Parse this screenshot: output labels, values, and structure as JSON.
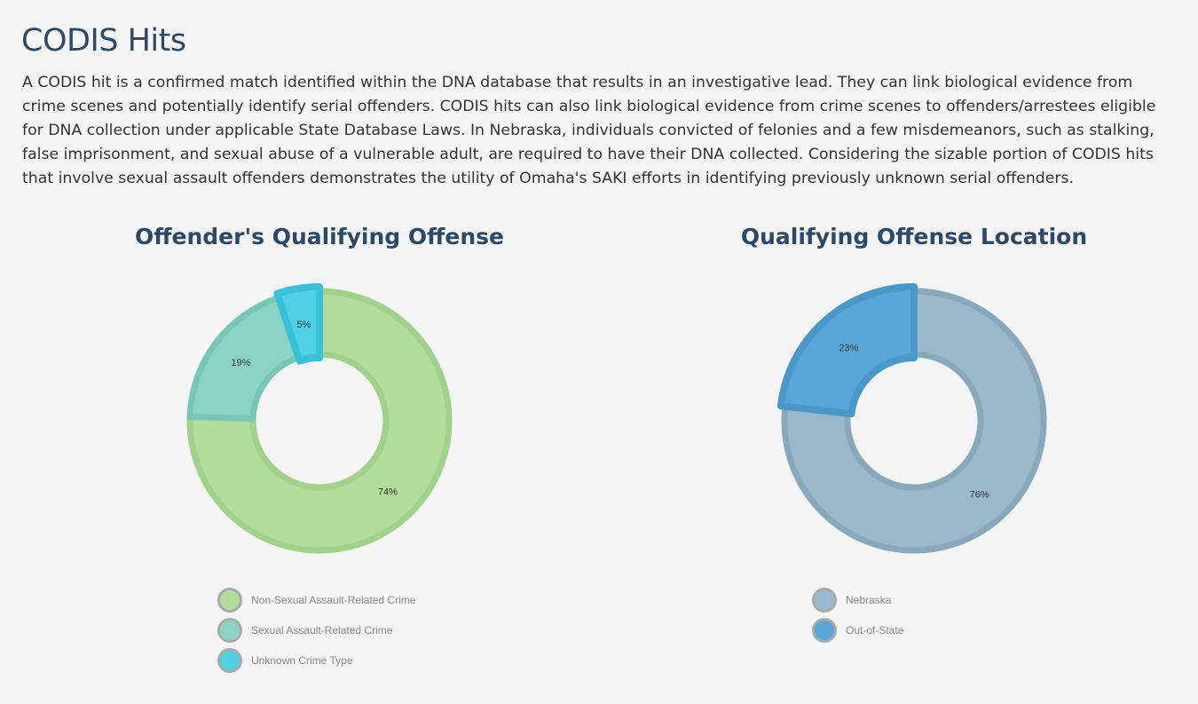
{
  "page": {
    "title": "CODIS Hits",
    "intro": "A CODIS hit is a confirmed match identified within the DNA database that results in an investigative lead. They can link biological evidence from crime scenes and potentially identify serial offenders. CODIS hits can also link biological evidence from crime scenes to offenders/arrestees eligible for DNA collection under applicable State Database Laws. In Nebraska, individuals convicted of felonies and a few misdemeanors, such as stalking, false imprisonment, and sexual abuse of a vulnerable adult, are required to have their DNA collected. Considering the sizable portion of CODIS hits that involve sexual assault offenders demonstrates the utility of Omaha's SAKI efforts in identifying previously unknown serial offenders."
  },
  "chart_data": [
    {
      "type": "pie",
      "donut": true,
      "title": "Offender's Qualifying Offense",
      "legend_position": "bottom",
      "start": "top, clockwise",
      "categories": [
        "Non-Sexual Assault-Related Crime",
        "Sexual Assault-Related Crime",
        "Unknown Crime Type"
      ],
      "values": [
        74,
        19,
        5
      ],
      "labels": [
        "74%",
        "19%",
        "5%"
      ],
      "colors": [
        "#b3dd9a",
        "#8bd3c5",
        "#4fd0e3"
      ],
      "strokes": [
        "#a1d18a",
        "#78c6b8",
        "#38c1d8"
      ],
      "highlight": "Unknown Crime Type"
    },
    {
      "type": "pie",
      "donut": true,
      "title": "Qualifying Offense Location",
      "legend_position": "bottom",
      "start": "top, clockwise",
      "categories": [
        "Nebraska",
        "Out-of-State"
      ],
      "values": [
        76,
        23
      ],
      "labels": [
        "76%",
        "23%"
      ],
      "colors": [
        "#9ab9ca",
        "#58a7d6"
      ],
      "strokes": [
        "#88a9bc",
        "#4a98c8"
      ],
      "highlight": "Out-of-State"
    }
  ]
}
